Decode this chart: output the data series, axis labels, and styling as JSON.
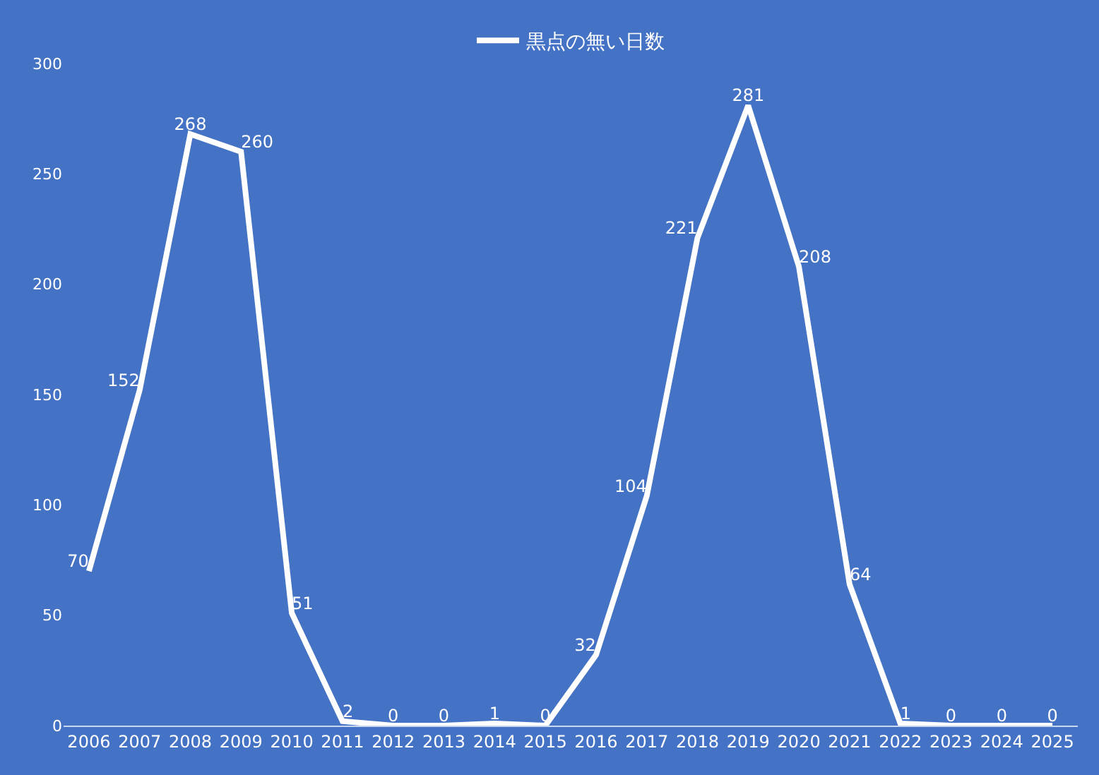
{
  "chart_data": {
    "type": "line",
    "categories": [
      "2006",
      "2007",
      "2008",
      "2009",
      "2010",
      "2011",
      "2012",
      "2013",
      "2014",
      "2015",
      "2016",
      "2017",
      "2018",
      "2019",
      "2020",
      "2021",
      "2022",
      "2023",
      "2024",
      "2025"
    ],
    "series": [
      {
        "name": "黒点の無い日数",
        "color": "#ffffff",
        "values": [
          70,
          152,
          268,
          260,
          51,
          2,
          0,
          0,
          1,
          0,
          32,
          104,
          221,
          281,
          208,
          64,
          1,
          0,
          0,
          0
        ]
      }
    ],
    "ylim": [
      0,
      300
    ],
    "yticks": [
      0,
      50,
      100,
      150,
      200,
      250,
      300
    ],
    "data_labels": true,
    "legend": "top",
    "grid": false,
    "marker": "none",
    "line_style": "solid"
  }
}
